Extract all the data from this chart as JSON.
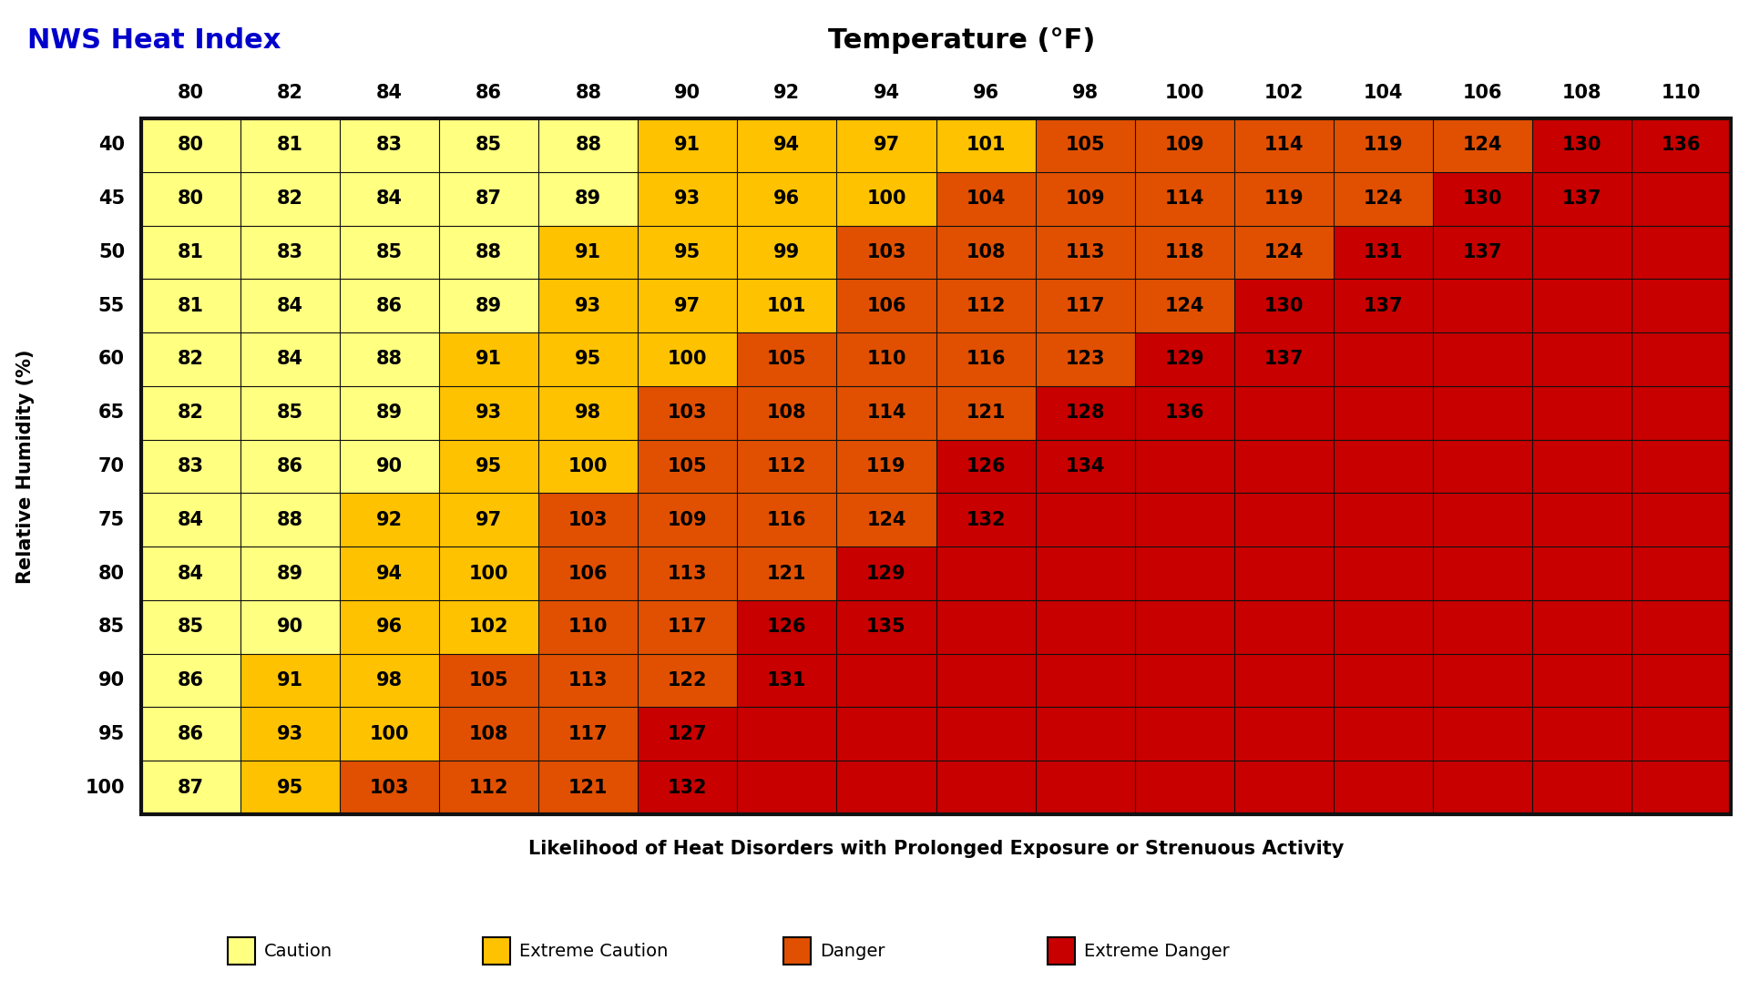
{
  "title_left": "NWS Heat Index",
  "title_center": "Temperature (°F)",
  "xlabel": "Likelihood of Heat Disorders with Prolonged Exposure or Strenuous Activity",
  "ylabel": "Relative Humidity (%)",
  "temps": [
    80,
    82,
    84,
    86,
    88,
    90,
    92,
    94,
    96,
    98,
    100,
    102,
    104,
    106,
    108,
    110
  ],
  "humidities": [
    40,
    45,
    50,
    55,
    60,
    65,
    70,
    75,
    80,
    85,
    90,
    95,
    100
  ],
  "heat_index": [
    [
      80,
      81,
      83,
      85,
      88,
      91,
      94,
      97,
      101,
      105,
      109,
      114,
      119,
      124,
      130,
      136
    ],
    [
      80,
      82,
      84,
      87,
      89,
      93,
      96,
      100,
      104,
      109,
      114,
      119,
      124,
      130,
      137,
      null
    ],
    [
      81,
      83,
      85,
      88,
      91,
      95,
      99,
      103,
      108,
      113,
      118,
      124,
      131,
      137,
      null,
      null
    ],
    [
      81,
      84,
      86,
      89,
      93,
      97,
      101,
      106,
      112,
      117,
      124,
      130,
      137,
      null,
      null,
      null
    ],
    [
      82,
      84,
      88,
      91,
      95,
      100,
      105,
      110,
      116,
      123,
      129,
      137,
      null,
      null,
      null,
      null
    ],
    [
      82,
      85,
      89,
      93,
      98,
      103,
      108,
      114,
      121,
      128,
      136,
      null,
      null,
      null,
      null,
      null
    ],
    [
      83,
      86,
      90,
      95,
      100,
      105,
      112,
      119,
      126,
      134,
      null,
      null,
      null,
      null,
      null,
      null
    ],
    [
      84,
      88,
      92,
      97,
      103,
      109,
      116,
      124,
      132,
      null,
      null,
      null,
      null,
      null,
      null,
      null
    ],
    [
      84,
      89,
      94,
      100,
      106,
      113,
      121,
      129,
      null,
      null,
      null,
      null,
      null,
      null,
      null,
      null
    ],
    [
      85,
      90,
      96,
      102,
      110,
      117,
      126,
      135,
      null,
      null,
      null,
      null,
      null,
      null,
      null,
      null
    ],
    [
      86,
      91,
      98,
      105,
      113,
      122,
      131,
      null,
      null,
      null,
      null,
      null,
      null,
      null,
      null,
      null
    ],
    [
      86,
      93,
      100,
      108,
      117,
      127,
      null,
      null,
      null,
      null,
      null,
      null,
      null,
      null,
      null,
      null
    ],
    [
      87,
      95,
      103,
      112,
      121,
      132,
      null,
      null,
      null,
      null,
      null,
      null,
      null,
      null,
      null,
      null
    ]
  ],
  "color_caution": "#FFFF80",
  "color_extreme_caution": "#FFC200",
  "color_danger": "#E05000",
  "color_extreme_danger": "#C80000",
  "bg_color": "#C80000",
  "border_color": "#111111",
  "title_left_color": "#0000CC",
  "title_center_color": "#000000",
  "legend_items": [
    {
      "label": "Caution",
      "color": "#FFFF80"
    },
    {
      "label": "Extreme Caution",
      "color": "#FFC200"
    },
    {
      "label": "Danger",
      "color": "#E05000"
    },
    {
      "label": "Extreme Danger",
      "color": "#C80000"
    }
  ],
  "caution_threshold": 91,
  "extreme_caution_threshold": 103,
  "danger_threshold": 125
}
